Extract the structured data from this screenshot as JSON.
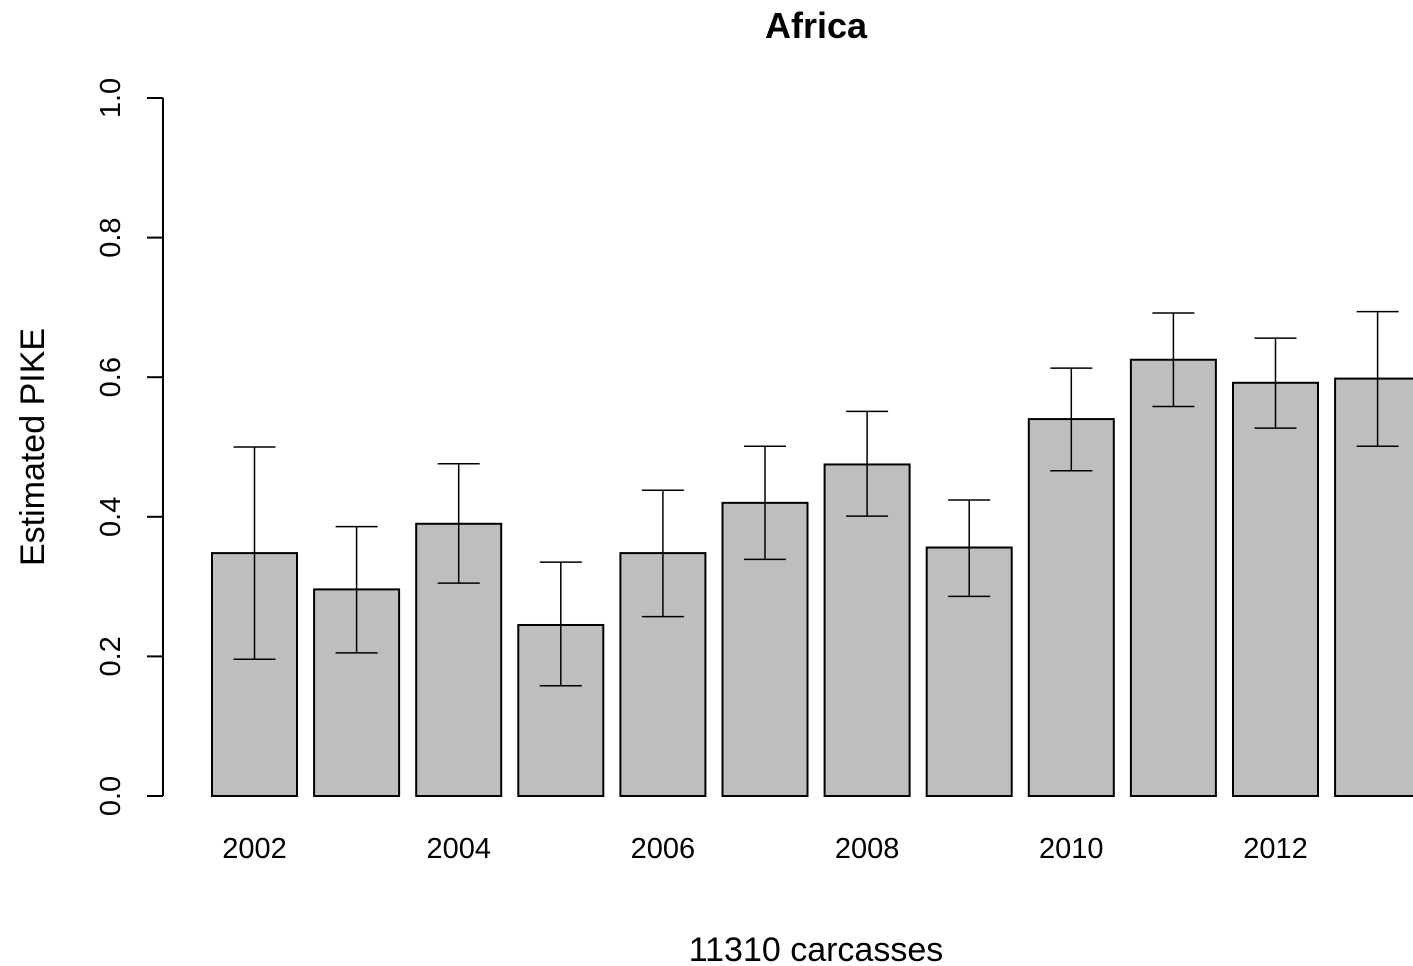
{
  "chart_data": {
    "type": "bar",
    "title": "Africa",
    "xlabel": "11310 carcasses",
    "ylabel": "Estimated PIKE",
    "ylim": [
      0,
      1
    ],
    "yticks": [
      0.0,
      0.2,
      0.4,
      0.6,
      0.8,
      1.0
    ],
    "ytick_labels": [
      "0.0",
      "0.2",
      "0.4",
      "0.6",
      "0.8",
      "1.0"
    ],
    "categories": [
      "2002",
      "2003",
      "2004",
      "2005",
      "2006",
      "2007",
      "2008",
      "2009",
      "2010",
      "2011",
      "2012",
      "2013"
    ],
    "xtick_labels": [
      "2002",
      "",
      "2004",
      "",
      "2006",
      "",
      "2008",
      "",
      "2010",
      "",
      "2012",
      ""
    ],
    "values": [
      0.348,
      0.296,
      0.39,
      0.245,
      0.348,
      0.42,
      0.475,
      0.356,
      0.54,
      0.625,
      0.592,
      0.598
    ],
    "error_lower": [
      0.196,
      0.205,
      0.305,
      0.158,
      0.257,
      0.339,
      0.401,
      0.286,
      0.466,
      0.558,
      0.527,
      0.501
    ],
    "error_upper": [
      0.5,
      0.386,
      0.476,
      0.335,
      0.438,
      0.501,
      0.551,
      0.424,
      0.613,
      0.692,
      0.656,
      0.694
    ],
    "bar_color": "#bebebe",
    "grid": false,
    "legend": "none"
  }
}
